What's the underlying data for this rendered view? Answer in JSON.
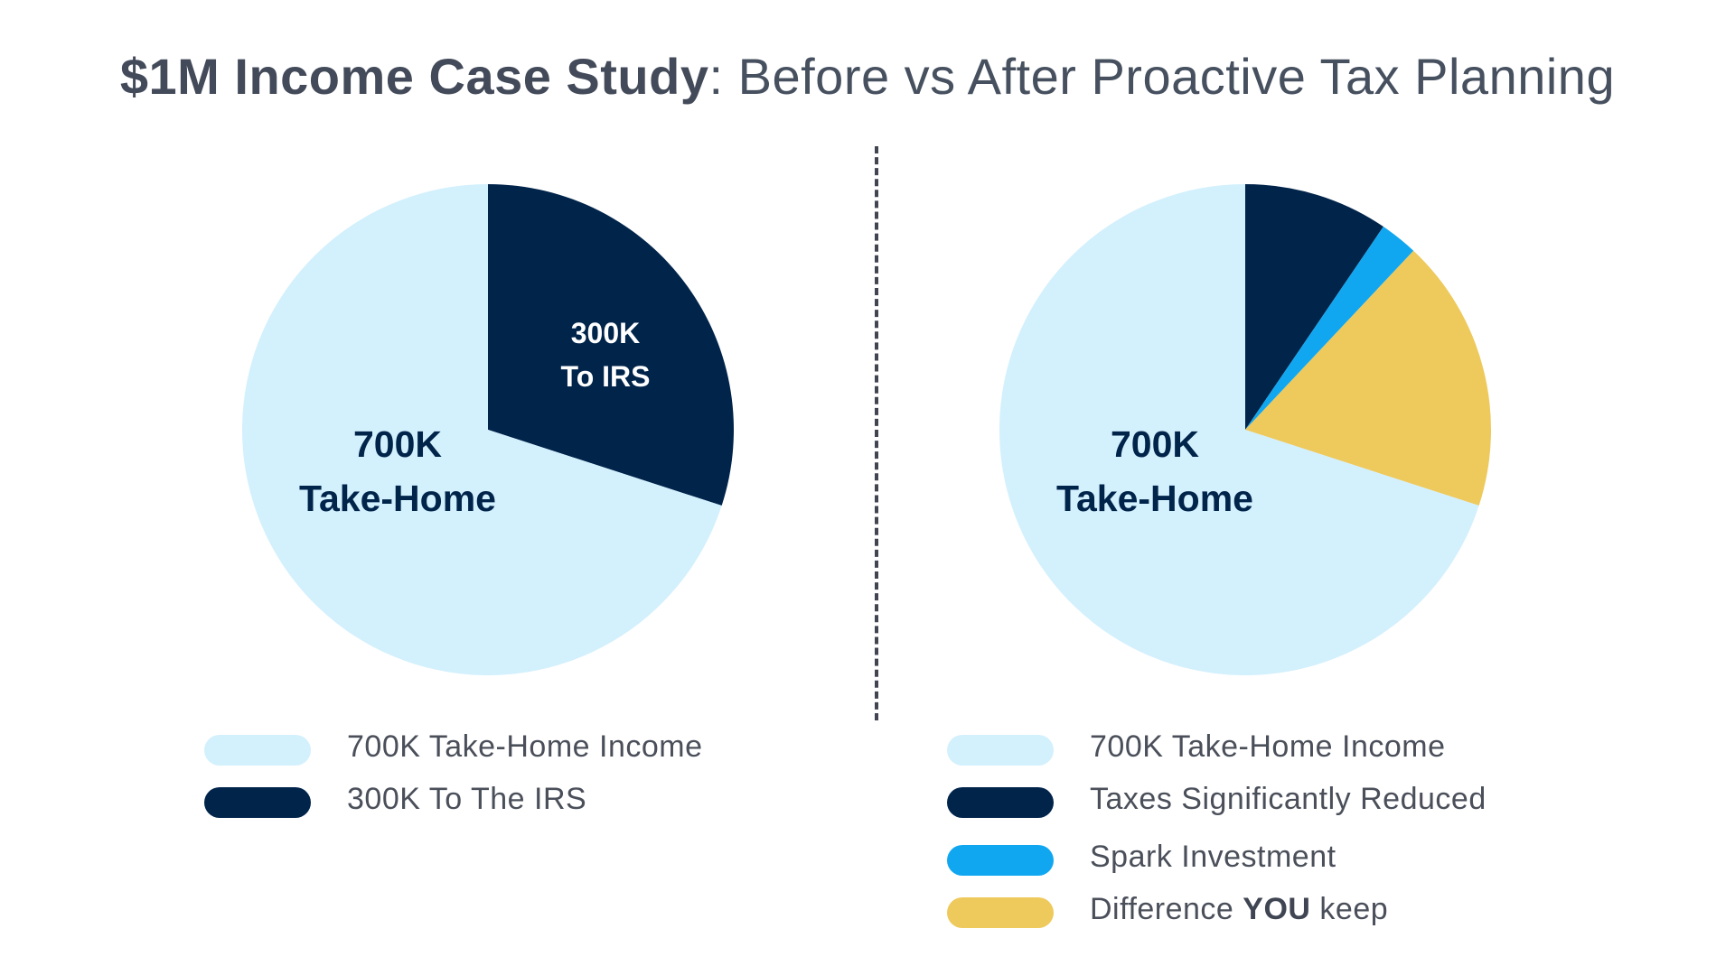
{
  "title": {
    "bold": "$1M Income Case Study",
    "rest": ": Before vs After Proactive Tax Planning"
  },
  "colors": {
    "take_home": "#d3f0fd",
    "irs": "#01244b",
    "spark": "#11a7f0",
    "keep": "#eec95c"
  },
  "chart_data": [
    {
      "type": "pie",
      "slices": [
        {
          "label": "300K To IRS",
          "value": 300,
          "color": "#01244b"
        },
        {
          "label": "700K Take-Home",
          "value": 700,
          "color": "#d3f0fd"
        }
      ],
      "slice_labels": [
        {
          "lines": [
            "300K",
            "To IRS"
          ],
          "color": "#ffffff"
        },
        {
          "lines": [
            "700K",
            "Take-Home"
          ],
          "color": "#01244b"
        }
      ],
      "legend": [
        {
          "label": "700K Take-Home Income",
          "color": "#d3f0fd"
        },
        {
          "label": "300K To The IRS",
          "color": "#01244b"
        }
      ]
    },
    {
      "type": "pie",
      "slices": [
        {
          "label": "Taxes Significantly Reduced",
          "value": 95,
          "color": "#01244b"
        },
        {
          "label": "Spark Investment",
          "value": 25,
          "color": "#11a7f0"
        },
        {
          "label": "Difference YOU keep",
          "value": 180,
          "color": "#eec95c"
        },
        {
          "label": "700K Take-Home Income",
          "value": 700,
          "color": "#d3f0fd"
        }
      ],
      "slice_labels": [
        {
          "lines": [
            "700K",
            "Take-Home"
          ],
          "color": "#01244b"
        }
      ],
      "legend": [
        {
          "label": "700K Take-Home Income",
          "color": "#d3f0fd"
        },
        {
          "label": "Taxes Significantly Reduced",
          "color": "#01244b"
        },
        {
          "label": "Spark Investment",
          "color": "#11a7f0"
        },
        {
          "label_parts": [
            "Difference ",
            "YOU",
            " keep"
          ],
          "color": "#eec95c"
        }
      ]
    }
  ]
}
